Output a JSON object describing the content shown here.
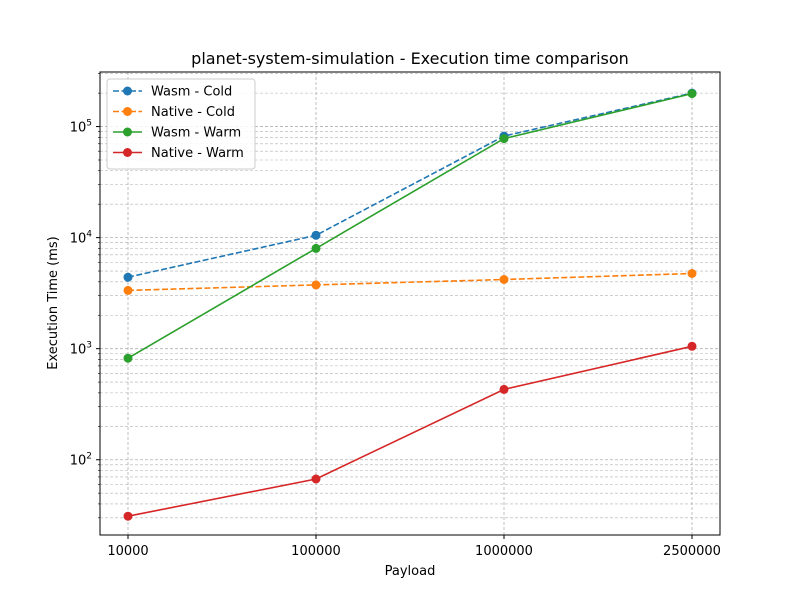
{
  "chart_data": {
    "type": "line",
    "title": "planet-system-simulation - Execution time comparison",
    "xlabel": "Payload",
    "ylabel": "Execution Time (ms)",
    "x_scale": "categorical",
    "y_scale": "log",
    "categories": [
      "10000",
      "100000",
      "1000000",
      "2500000"
    ],
    "ylim": [
      21,
      310000
    ],
    "y_ticks": [
      {
        "value": 100,
        "label": "10",
        "exp": "2"
      },
      {
        "value": 1000,
        "label": "10",
        "exp": "3"
      },
      {
        "value": 10000,
        "label": "10",
        "exp": "4"
      },
      {
        "value": 100000,
        "label": "10",
        "exp": "5"
      }
    ],
    "grid": true,
    "legend_position": "top-left",
    "series": [
      {
        "name": "Wasm - Cold",
        "color": "#1f77b4",
        "dash": "dashed",
        "values": [
          4400,
          10500,
          82000,
          200000
        ]
      },
      {
        "name": "Native - Cold",
        "color": "#ff7f0e",
        "dash": "dashed",
        "values": [
          3350,
          3750,
          4200,
          4750
        ]
      },
      {
        "name": "Wasm - Warm",
        "color": "#2ca02c",
        "dash": "solid",
        "values": [
          820,
          8000,
          78000,
          198000
        ]
      },
      {
        "name": "Native - Warm",
        "color": "#d62728",
        "dash": "solid",
        "values": [
          31,
          67,
          430,
          1050
        ]
      }
    ]
  }
}
